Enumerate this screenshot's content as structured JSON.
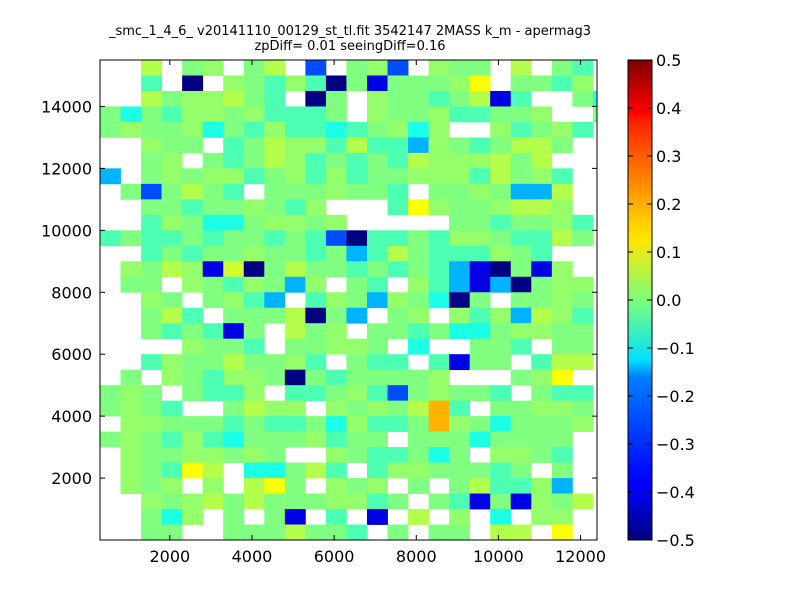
{
  "chart_data": {
    "type": "heatmap",
    "title_lines": [
      "_smc_1_4_6_ v20141110_00129_st_tl.fit 3542147 2MASS k_m - apermag3",
      "zpDiff= 0.01 seeingDiff=0.16"
    ],
    "xlabel": "",
    "ylabel": "",
    "xlim": [
      300,
      12400
    ],
    "ylim": [
      0,
      15500
    ],
    "x_ticks": [
      2000,
      4000,
      6000,
      8000,
      10000,
      12000
    ],
    "x_tick_labels": [
      "2000",
      "4000",
      "6000",
      "8000",
      "10000",
      "12000"
    ],
    "y_ticks": [
      2000,
      4000,
      6000,
      8000,
      10000,
      12000,
      14000
    ],
    "y_tick_labels": [
      "2000",
      "4000",
      "6000",
      "8000",
      "10000",
      "12000",
      "14000"
    ],
    "colorbar": {
      "colormap": "jet",
      "vmin": -0.5,
      "vmax": 0.5,
      "ticks": [
        0.5,
        0.4,
        0.3,
        0.2,
        0.1,
        0.0,
        -0.1,
        -0.2,
        -0.3,
        -0.4,
        -0.5
      ],
      "tick_labels": [
        "0.5",
        "0.4",
        "0.3",
        "0.2",
        "0.1",
        "0.0",
        "−0.1",
        "−0.2",
        "−0.3",
        "−0.4",
        "−0.5"
      ]
    },
    "grid": false,
    "cells": {
      "x_start": 300,
      "y_start": 0,
      "bin_size": 500,
      "nx": 25,
      "ny": 31,
      "row_order": "top-to-bottom",
      "null_symbol": ".",
      "symbol_values": {
        "a": -0.5,
        "b": -0.4,
        "c": -0.3,
        "d": -0.2,
        "e": -0.1,
        "f": -0.05,
        "g": 0.0,
        "h": 0.02,
        "i": 0.05,
        "j": 0.08,
        "k": 0.12,
        "l": 0.2,
        "m": 0.3,
        "n": 0.4,
        "o": 0.5
      },
      "rows": [
        "..i.gh.gi.c.ghc.hgg.i.gf.",
        "..f.a.hgfhfagbggghk.ggfh.",
        "..ighhigf.ag.hggfgibf..ge",
        "gegfhhghfffg.hgghffggh..g",
        "ghgghegfhffefgheh..hfghf.",
        "..hgg.fgihhfiffdhgfgiig..",
        "..gh.gfgihfgfgfihhhigi...",
        "d.ghghhfghfhfgghhhfighf..",
        ".gcgigf.ggghggf.gghgddi..",
        "..ggfgghgfh...fkhgghiih..",
        "..fhgeeghhgh.....ggfgghf.",
        "fgffgfggfgfcaffgfhhgffig.",
        "..fgfgghggfgdfigfffhgf...",
        ".hgihbjagiggfgfgfdbagbh..",
        ".gg.hgfhgdh.gf.hfdbdaghh.",
        "..hg.ghfd.fhgdhgeag.gghg.",
        "..gif.gggiagd.gh.hfhdihf.",
        "..gfgfbg.igh.ggfgeeghhgg.",
        "....hggf.gghhg.e..ggf.gg.",
        "..fhggigghf.gff.fbgg.fii.",
        ".g.hgfhhgagfggggh...ghk..",
        "ghg.gffh.ffghfcghggf.gff.",
        "ghgf..gihh.hghgilf.gghhg.",
        ".hhgggfgffgehffglhgegggh.",
        "ghgfhfeggghfgg.gggegggg..",
        ".hgghhghg..hgffgeg.hhgf..",
        ".hgfki.eegif.fhhgggfg.g..",
        ".hgh.h.ikg.hgh.g.giffhd..",
        "..hghigiggghhfg.gfbgbhgi.",
        "..geh.g.gb.f.b.i.h.e.hh..",
        "..gg..gggiggf.g.gg.ii.k.."
      ]
    }
  }
}
